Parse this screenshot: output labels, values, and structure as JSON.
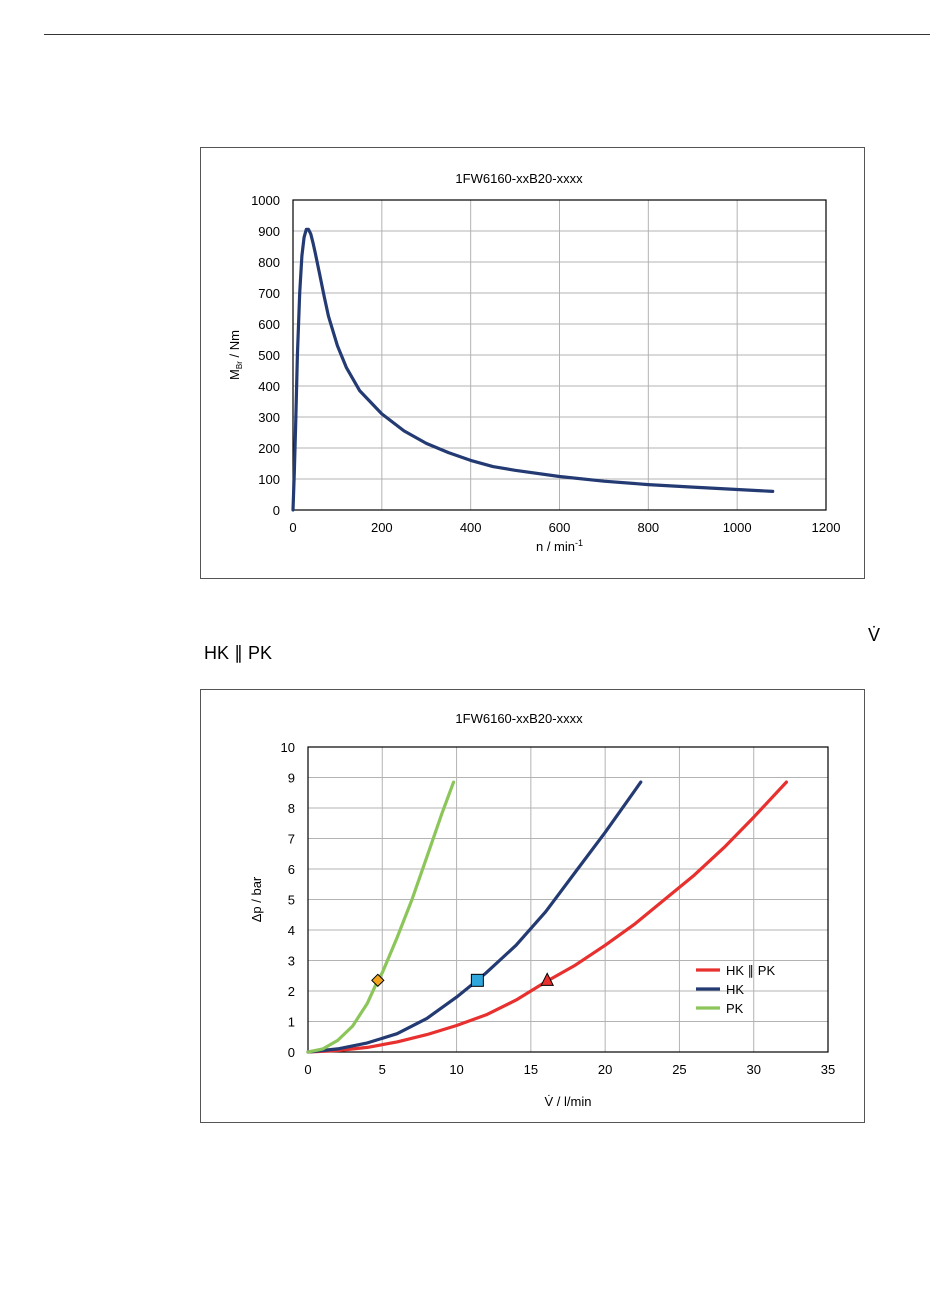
{
  "captions": {
    "flow_symbol": "V̇",
    "circuit_label": "HK ∥ PK"
  },
  "colors": {
    "navy": "#243a73",
    "red": "#e8302e",
    "green": "#8cc65a",
    "grid": "#b3b3b3",
    "marker_diamond": "#f2a51c",
    "marker_square": "#2fa6dc",
    "marker_triangle": "#e8302e"
  },
  "chart_data": [
    {
      "type": "line",
      "title": "1FW6160-xxB20-xxxx",
      "xlabel": "n / min",
      "xlabel_sup": "-1",
      "ylabel": "M",
      "ylabel_sub": "Br",
      "ylabel_unit": " / Nm",
      "xlim": [
        0,
        1200
      ],
      "ylim": [
        0,
        1000
      ],
      "xticks": [
        0,
        200,
        400,
        600,
        800,
        1000,
        1200
      ],
      "yticks": [
        0,
        100,
        200,
        300,
        400,
        500,
        600,
        700,
        800,
        900,
        1000
      ],
      "grid": true,
      "series": [
        {
          "name": "M_Br",
          "color": "#243a73",
          "x": [
            0,
            3,
            6,
            10,
            15,
            20,
            25,
            30,
            35,
            40,
            45,
            50,
            60,
            70,
            80,
            100,
            120,
            150,
            200,
            250,
            300,
            350,
            400,
            450,
            500,
            600,
            700,
            800,
            900,
            1000,
            1080
          ],
          "y": [
            0,
            120,
            280,
            500,
            700,
            820,
            880,
            905,
            905,
            890,
            862,
            830,
            760,
            690,
            625,
            530,
            460,
            385,
            310,
            255,
            215,
            185,
            160,
            140,
            128,
            108,
            93,
            82,
            74,
            66,
            60
          ]
        }
      ]
    },
    {
      "type": "line",
      "title": "1FW6160-xxB20-xxxx",
      "xlabel": "V̇ / l/min",
      "ylabel": "Δp / bar",
      "xlim": [
        0,
        35
      ],
      "ylim": [
        0,
        10
      ],
      "xticks": [
        0,
        5,
        10,
        15,
        20,
        25,
        30,
        35
      ],
      "yticks": [
        0,
        1,
        2,
        3,
        4,
        5,
        6,
        7,
        8,
        9,
        10
      ],
      "grid": true,
      "legend": "right-middle",
      "series": [
        {
          "name": "HK ∥ PK",
          "color": "#e8302e",
          "x": [
            0,
            2,
            4,
            6,
            8,
            10,
            12,
            14,
            16,
            18,
            20,
            22,
            24,
            26,
            28,
            30,
            32.2
          ],
          "y": [
            0,
            0.05,
            0.15,
            0.33,
            0.57,
            0.87,
            1.22,
            1.7,
            2.3,
            2.85,
            3.5,
            4.2,
            5.0,
            5.8,
            6.7,
            7.7,
            8.85
          ],
          "marker": {
            "shape": "triangle",
            "x": 16.1,
            "y": 2.35,
            "color": "#e8302e"
          }
        },
        {
          "name": "HK",
          "color": "#243a73",
          "x": [
            0,
            2,
            4,
            6,
            8,
            10,
            11.4,
            12,
            14,
            16,
            18,
            20,
            22.4
          ],
          "y": [
            0,
            0.1,
            0.3,
            0.6,
            1.1,
            1.8,
            2.35,
            2.6,
            3.5,
            4.6,
            5.9,
            7.2,
            8.85
          ],
          "marker": {
            "shape": "square",
            "x": 11.4,
            "y": 2.35,
            "color": "#2fa6dc"
          }
        },
        {
          "name": "PK",
          "color": "#8cc65a",
          "x": [
            0,
            1,
            2,
            3,
            4,
            4.7,
            5,
            6,
            7,
            8,
            9,
            9.8
          ],
          "y": [
            0,
            0.1,
            0.38,
            0.85,
            1.6,
            2.35,
            2.6,
            3.75,
            5.0,
            6.4,
            7.8,
            8.85
          ],
          "marker": {
            "shape": "diamond",
            "x": 4.7,
            "y": 2.35,
            "color": "#f2a51c"
          }
        }
      ]
    }
  ]
}
